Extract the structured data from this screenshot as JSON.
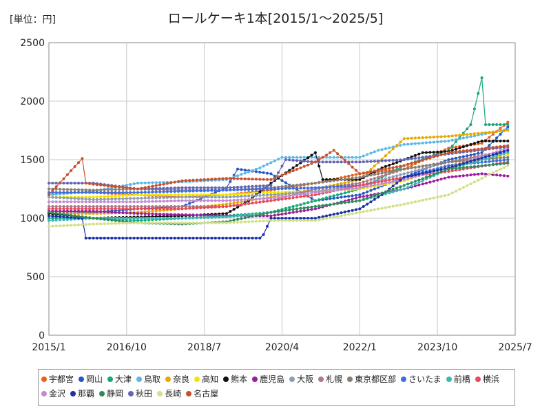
{
  "chart_data": {
    "type": "line",
    "title": "ロールケーキ1本[2015/1～2025/5]",
    "unit_label": "[単位：円]",
    "ylim": [
      0,
      2500
    ],
    "y_ticks": [
      "0",
      "500",
      "1000",
      "1500",
      "2000",
      "2500"
    ],
    "y_tick_values": [
      0,
      500,
      1000,
      1500,
      2000,
      2500
    ],
    "x_range": [
      "2015-01",
      "2025-07"
    ],
    "x_ticks": [
      "2015/1",
      "2016/10",
      "2018/7",
      "2020/4",
      "2022/1",
      "2023/10",
      "2025/7"
    ],
    "grid": true,
    "legend_position": "bottom",
    "series": [
      {
        "name": "宇都宮",
        "color": "#e8611a",
        "points": [
          [
            "2015-01",
            1220
          ],
          [
            "2016-01",
            1220
          ],
          [
            "2017-01",
            1200
          ],
          [
            "2018-01",
            1180
          ],
          [
            "2019-01",
            1200
          ],
          [
            "2020-01",
            1240
          ],
          [
            "2021-01",
            1300
          ],
          [
            "2022-01",
            1380
          ],
          [
            "2023-01",
            1420
          ],
          [
            "2024-01",
            1600
          ],
          [
            "2024-10",
            1640
          ],
          [
            "2025-05",
            1820
          ]
        ]
      },
      {
        "name": "岡山",
        "color": "#2457c5",
        "points": [
          [
            "2015-01",
            1060
          ],
          [
            "2016-01",
            1050
          ],
          [
            "2017-01",
            1080
          ],
          [
            "2018-01",
            1100
          ],
          [
            "2019-01",
            1260
          ],
          [
            "2019-04",
            1420
          ],
          [
            "2020-01",
            1380
          ],
          [
            "2021-01",
            1150
          ],
          [
            "2022-01",
            1200
          ],
          [
            "2023-01",
            1350
          ],
          [
            "2024-01",
            1500
          ],
          [
            "2024-10",
            1560
          ],
          [
            "2025-05",
            1780
          ]
        ]
      },
      {
        "name": "大津",
        "color": "#14a87a",
        "points": [
          [
            "2015-01",
            1000
          ],
          [
            "2016-01",
            1000
          ],
          [
            "2017-01",
            980
          ],
          [
            "2018-01",
            1000
          ],
          [
            "2019-01",
            1020
          ],
          [
            "2020-01",
            1050
          ],
          [
            "2021-01",
            1150
          ],
          [
            "2022-01",
            1250
          ],
          [
            "2023-01",
            1450
          ],
          [
            "2024-01",
            1580
          ],
          [
            "2024-07",
            1800
          ],
          [
            "2024-10",
            2200
          ],
          [
            "2024-11",
            1800
          ],
          [
            "2025-05",
            1800
          ]
        ]
      },
      {
        "name": "鳥取",
        "color": "#5bb8e8",
        "points": [
          [
            "2015-01",
            1200
          ],
          [
            "2016-01",
            1230
          ],
          [
            "2017-01",
            1300
          ],
          [
            "2018-01",
            1310
          ],
          [
            "2019-01",
            1330
          ],
          [
            "2019-10",
            1430
          ],
          [
            "2020-04",
            1520
          ],
          [
            "2021-01",
            1520
          ],
          [
            "2022-01",
            1520
          ],
          [
            "2022-06",
            1580
          ],
          [
            "2023-01",
            1630
          ],
          [
            "2024-01",
            1660
          ],
          [
            "2025-05",
            1760
          ]
        ]
      },
      {
        "name": "奈良",
        "color": "#e8a800",
        "points": [
          [
            "2015-01",
            1040
          ],
          [
            "2016-01",
            1040
          ],
          [
            "2017-01",
            1050
          ],
          [
            "2018-01",
            1080
          ],
          [
            "2019-01",
            1120
          ],
          [
            "2020-01",
            1180
          ],
          [
            "2021-01",
            1250
          ],
          [
            "2022-01",
            1330
          ],
          [
            "2023-01",
            1680
          ],
          [
            "2024-01",
            1700
          ],
          [
            "2025-05",
            1750
          ]
        ]
      },
      {
        "name": "高知",
        "color": "#f2e600",
        "points": [
          [
            "2015-01",
            1180
          ],
          [
            "2016-01",
            1180
          ],
          [
            "2017-01",
            1200
          ],
          [
            "2018-01",
            1200
          ],
          [
            "2019-01",
            1200
          ],
          [
            "2020-01",
            1220
          ],
          [
            "2021-01",
            1230
          ],
          [
            "2022-01",
            1250
          ],
          [
            "2023-01",
            1320
          ],
          [
            "2024-01",
            1450
          ],
          [
            "2025-05",
            1540
          ]
        ]
      },
      {
        "name": "熊本",
        "color": "#111111",
        "points": [
          [
            "2015-01",
            1040
          ],
          [
            "2016-01",
            1000
          ],
          [
            "2017-01",
            1010
          ],
          [
            "2018-01",
            1020
          ],
          [
            "2019-01",
            1040
          ],
          [
            "2019-07",
            1150
          ],
          [
            "2020-01",
            1300
          ],
          [
            "2021-01",
            1560
          ],
          [
            "2021-03",
            1330
          ],
          [
            "2022-01",
            1330
          ],
          [
            "2022-07",
            1430
          ],
          [
            "2023-01",
            1500
          ],
          [
            "2023-06",
            1560
          ],
          [
            "2024-01",
            1570
          ],
          [
            "2024-10",
            1660
          ],
          [
            "2025-05",
            1660
          ]
        ]
      },
      {
        "name": "鹿児島",
        "color": "#9c1d9c",
        "points": [
          [
            "2015-01",
            1060
          ],
          [
            "2016-01",
            1060
          ],
          [
            "2017-01",
            1040
          ],
          [
            "2018-01",
            1030
          ],
          [
            "2019-01",
            1020
          ],
          [
            "2020-01",
            1020
          ],
          [
            "2021-01",
            1080
          ],
          [
            "2022-01",
            1180
          ],
          [
            "2023-01",
            1250
          ],
          [
            "2024-01",
            1350
          ],
          [
            "2024-10",
            1380
          ],
          [
            "2025-05",
            1360
          ]
        ]
      },
      {
        "name": "大阪",
        "color": "#8e9eae",
        "points": [
          [
            "2015-01",
            1180
          ],
          [
            "2016-01",
            1160
          ],
          [
            "2017-01",
            1170
          ],
          [
            "2018-01",
            1180
          ],
          [
            "2019-01",
            1180
          ],
          [
            "2020-01",
            1200
          ],
          [
            "2021-01",
            1230
          ],
          [
            "2022-01",
            1280
          ],
          [
            "2023-01",
            1380
          ],
          [
            "2024-01",
            1480
          ],
          [
            "2025-05",
            1560
          ]
        ]
      },
      {
        "name": "札幌",
        "color": "#b07888",
        "points": [
          [
            "2015-01",
            1100
          ],
          [
            "2016-01",
            1100
          ],
          [
            "2017-01",
            1100
          ],
          [
            "2018-01",
            1100
          ],
          [
            "2019-01",
            1100
          ],
          [
            "2020-01",
            1150
          ],
          [
            "2021-01",
            1250
          ],
          [
            "2022-01",
            1300
          ],
          [
            "2023-01",
            1420
          ],
          [
            "2024-01",
            1480
          ],
          [
            "2025-05",
            1580
          ]
        ]
      },
      {
        "name": "東京都区部",
        "color": "#8a7e72",
        "points": [
          [
            "2015-01",
            1250
          ],
          [
            "2016-01",
            1240
          ],
          [
            "2017-01",
            1250
          ],
          [
            "2018-01",
            1240
          ],
          [
            "2019-01",
            1240
          ],
          [
            "2020-01",
            1260
          ],
          [
            "2021-01",
            1300
          ],
          [
            "2022-01",
            1350
          ],
          [
            "2023-01",
            1420
          ],
          [
            "2024-01",
            1480
          ],
          [
            "2025-05",
            1520
          ]
        ]
      },
      {
        "name": "さいたま",
        "color": "#3d6ee0",
        "points": [
          [
            "2015-01",
            1220
          ],
          [
            "2016-01",
            1220
          ],
          [
            "2017-01",
            1220
          ],
          [
            "2018-01",
            1230
          ],
          [
            "2019-01",
            1240
          ],
          [
            "2020-01",
            1250
          ],
          [
            "2021-01",
            1260
          ],
          [
            "2022-01",
            1280
          ],
          [
            "2023-01",
            1350
          ],
          [
            "2024-01",
            1450
          ],
          [
            "2025-05",
            1500
          ]
        ]
      },
      {
        "name": "前橋",
        "color": "#3cb8b8",
        "points": [
          [
            "2015-01",
            980
          ],
          [
            "2016-01",
            1000
          ],
          [
            "2017-01",
            1000
          ],
          [
            "2018-01",
            1000
          ],
          [
            "2019-01",
            1010
          ],
          [
            "2020-01",
            1050
          ],
          [
            "2021-01",
            1100
          ],
          [
            "2022-01",
            1150
          ],
          [
            "2023-01",
            1250
          ],
          [
            "2024-01",
            1420
          ],
          [
            "2025-05",
            1560
          ]
        ]
      },
      {
        "name": "横浜",
        "color": "#e84a5a",
        "points": [
          [
            "2015-01",
            1080
          ],
          [
            "2016-01",
            1080
          ],
          [
            "2017-01",
            1080
          ],
          [
            "2018-01",
            1080
          ],
          [
            "2019-01",
            1100
          ],
          [
            "2020-01",
            1150
          ],
          [
            "2021-01",
            1200
          ],
          [
            "2022-01",
            1280
          ],
          [
            "2023-01",
            1350
          ],
          [
            "2024-01",
            1400
          ],
          [
            "2025-05",
            1480
          ]
        ]
      },
      {
        "name": "金沢",
        "color": "#c28ad2",
        "points": [
          [
            "2015-01",
            1140
          ],
          [
            "2016-01",
            1140
          ],
          [
            "2017-01",
            1140
          ],
          [
            "2018-01",
            1150
          ],
          [
            "2019-01",
            1150
          ],
          [
            "2020-01",
            1170
          ],
          [
            "2021-01",
            1220
          ],
          [
            "2022-01",
            1260
          ],
          [
            "2023-01",
            1330
          ],
          [
            "2024-01",
            1430
          ],
          [
            "2025-05",
            1600
          ]
        ]
      },
      {
        "name": "那覇",
        "color": "#1f2fa8",
        "points": [
          [
            "2015-01",
            1020
          ],
          [
            "2015-10",
            1000
          ],
          [
            "2015-11",
            830
          ],
          [
            "2016-10",
            830
          ],
          [
            "2017-10",
            830
          ],
          [
            "2018-10",
            830
          ],
          [
            "2019-10",
            830
          ],
          [
            "2019-11",
            860
          ],
          [
            "2020-01",
            1000
          ],
          [
            "2021-01",
            1000
          ],
          [
            "2022-01",
            1080
          ],
          [
            "2022-07",
            1200
          ],
          [
            "2023-01",
            1350
          ],
          [
            "2024-01",
            1430
          ],
          [
            "2025-05",
            1580
          ]
        ]
      },
      {
        "name": "静岡",
        "color": "#2e8b57",
        "points": [
          [
            "2015-01",
            1050
          ],
          [
            "2016-01",
            1000
          ],
          [
            "2017-01",
            960
          ],
          [
            "2018-01",
            950
          ],
          [
            "2019-01",
            970
          ],
          [
            "2020-01",
            1050
          ],
          [
            "2021-01",
            1100
          ],
          [
            "2022-01",
            1150
          ],
          [
            "2023-01",
            1280
          ],
          [
            "2024-01",
            1420
          ],
          [
            "2025-05",
            1470
          ]
        ]
      },
      {
        "name": "秋田",
        "color": "#6464b4",
        "points": [
          [
            "2015-01",
            1300
          ],
          [
            "2016-01",
            1300
          ],
          [
            "2017-01",
            1250
          ],
          [
            "2018-01",
            1260
          ],
          [
            "2019-01",
            1260
          ],
          [
            "2020-01",
            1280
          ],
          [
            "2020-05",
            1500
          ],
          [
            "2021-01",
            1480
          ],
          [
            "2022-01",
            1480
          ],
          [
            "2023-01",
            1500
          ],
          [
            "2024-01",
            1550
          ],
          [
            "2025-05",
            1610
          ]
        ]
      },
      {
        "name": "長崎",
        "color": "#d2e08a",
        "points": [
          [
            "2015-01",
            930
          ],
          [
            "2016-01",
            950
          ],
          [
            "2017-01",
            960
          ],
          [
            "2018-01",
            960
          ],
          [
            "2019-01",
            960
          ],
          [
            "2020-01",
            980
          ],
          [
            "2021-01",
            980
          ],
          [
            "2022-01",
            1050
          ],
          [
            "2023-01",
            1120
          ],
          [
            "2024-01",
            1200
          ],
          [
            "2025-05",
            1450
          ]
        ]
      },
      {
        "name": "名古屋",
        "color": "#c8502a",
        "points": [
          [
            "2015-01",
            1200
          ],
          [
            "2015-10",
            1510
          ],
          [
            "2015-11",
            1300
          ],
          [
            "2016-01",
            1290
          ],
          [
            "2017-01",
            1250
          ],
          [
            "2018-01",
            1320
          ],
          [
            "2019-01",
            1340
          ],
          [
            "2020-01",
            1330
          ],
          [
            "2021-01",
            1480
          ],
          [
            "2021-06",
            1580
          ],
          [
            "2022-01",
            1380
          ],
          [
            "2023-01",
            1450
          ],
          [
            "2024-01",
            1560
          ],
          [
            "2025-05",
            1620
          ]
        ]
      }
    ]
  }
}
